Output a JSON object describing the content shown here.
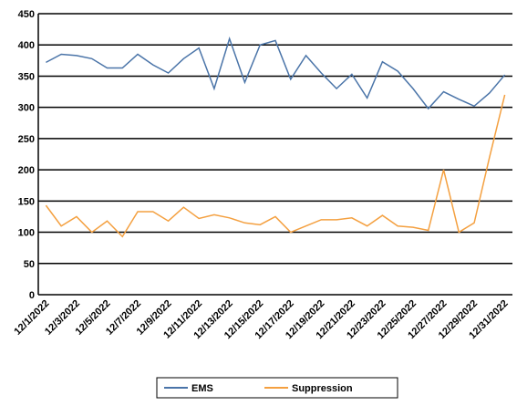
{
  "chart_data": {
    "type": "line",
    "categories": [
      "12/1/2022",
      null,
      "12/3/2022",
      null,
      "12/5/2022",
      null,
      "12/7/2022",
      null,
      "12/9/2022",
      null,
      "12/11/2022",
      null,
      "12/13/2022",
      null,
      "12/15/2022",
      null,
      "12/17/2022",
      null,
      "12/19/2022",
      null,
      "12/21/2022",
      null,
      "12/23/2022",
      null,
      "12/25/2022",
      null,
      "12/27/2022",
      null,
      "12/29/2022",
      null,
      "12/31/2022"
    ],
    "series": [
      {
        "name": "EMS",
        "color": "#4a74a8",
        "values": [
          372,
          385,
          383,
          378,
          363,
          363,
          385,
          368,
          355,
          378,
          395,
          330,
          410,
          340,
          400,
          407,
          345,
          383,
          355,
          330,
          353,
          315,
          373,
          358,
          330,
          298,
          325,
          313,
          302,
          323,
          352
        ]
      },
      {
        "name": "Suppression",
        "color": "#f4a040",
        "values": [
          143,
          110,
          125,
          100,
          118,
          93,
          133,
          133,
          118,
          140,
          122,
          128,
          123,
          115,
          112,
          125,
          100,
          110,
          120,
          120,
          123,
          110,
          127,
          110,
          108,
          103,
          200,
          100,
          115,
          220,
          320
        ]
      }
    ],
    "ylim": [
      0,
      450
    ],
    "yticks": [
      0,
      50,
      100,
      150,
      200,
      250,
      300,
      350,
      400,
      450
    ],
    "grid": true,
    "legend": "bottom"
  }
}
